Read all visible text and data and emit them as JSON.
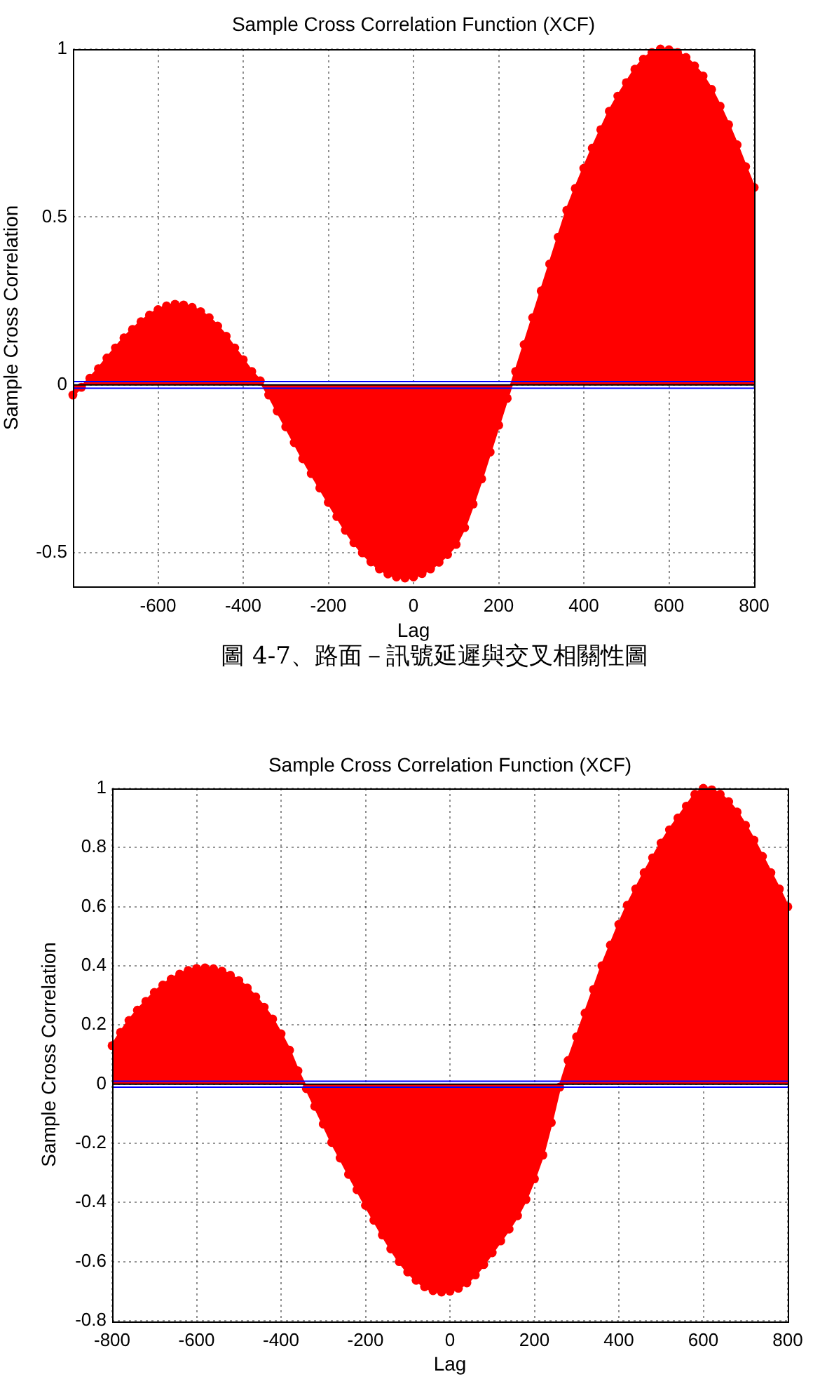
{
  "chart_data": [
    {
      "type": "area",
      "title": "Sample Cross Correlation Function (XCF)",
      "xlabel": "Lag",
      "ylabel": "Sample Cross Correlation",
      "annotations": [
        "圖 4-7、路面－訊號延遲與交叉相關性圖"
      ],
      "color": "#ff0000",
      "marker": "circle",
      "grid": true,
      "xlim": [
        -800,
        800
      ],
      "xticks": [
        -600,
        -400,
        -200,
        0,
        200,
        400,
        600,
        800
      ],
      "ylim": [
        -0.6,
        1
      ],
      "yticks": [
        -0.5,
        0,
        0.5,
        1
      ],
      "x": [
        -800,
        -780,
        -760,
        -740,
        -720,
        -700,
        -680,
        -660,
        -640,
        -620,
        -600,
        -580,
        -560,
        -540,
        -520,
        -500,
        -480,
        -460,
        -440,
        -420,
        -400,
        -380,
        -360,
        -340,
        -320,
        -300,
        -280,
        -260,
        -240,
        -220,
        -200,
        -180,
        -160,
        -140,
        -120,
        -100,
        -80,
        -60,
        -40,
        -20,
        0,
        20,
        40,
        60,
        80,
        100,
        120,
        140,
        160,
        180,
        200,
        220,
        240,
        260,
        280,
        300,
        320,
        340,
        360,
        380,
        400,
        420,
        440,
        460,
        480,
        500,
        520,
        540,
        560,
        580,
        600,
        620,
        640,
        660,
        680,
        700,
        720,
        740,
        760,
        780,
        800
      ],
      "values": [
        -0.03,
        -0.007,
        0.02,
        0.048,
        0.08,
        0.11,
        0.14,
        0.165,
        0.188,
        0.208,
        0.224,
        0.235,
        0.24,
        0.238,
        0.231,
        0.218,
        0.2,
        0.175,
        0.145,
        0.11,
        0.075,
        0.04,
        0.012,
        -0.03,
        -0.078,
        -0.125,
        -0.172,
        -0.22,
        -0.264,
        -0.307,
        -0.35,
        -0.392,
        -0.433,
        -0.47,
        -0.5,
        -0.527,
        -0.548,
        -0.563,
        -0.572,
        -0.575,
        -0.572,
        -0.562,
        -0.548,
        -0.528,
        -0.505,
        -0.475,
        -0.425,
        -0.355,
        -0.28,
        -0.2,
        -0.12,
        -0.04,
        0.04,
        0.12,
        0.2,
        0.28,
        0.36,
        0.44,
        0.52,
        0.585,
        0.645,
        0.705,
        0.76,
        0.815,
        0.86,
        0.9,
        0.94,
        0.97,
        0.99,
        1,
        0.998,
        0.99,
        0.975,
        0.95,
        0.92,
        0.88,
        0.83,
        0.775,
        0.715,
        0.65,
        0.588
      ],
      "ref_lines": [
        {
          "axis": "y",
          "value": 0.01,
          "color": "#0000ff"
        },
        {
          "axis": "y",
          "value": -0.01,
          "color": "#0000ff"
        },
        {
          "axis": "y",
          "value": 0,
          "color": "#000000"
        }
      ]
    },
    {
      "type": "area",
      "title": "Sample Cross Correlation Function (XCF)",
      "xlabel": "Lag",
      "ylabel": "Sample Cross Correlation",
      "color": "#ff0000",
      "marker": "circle",
      "grid": true,
      "xlim": [
        -800,
        800
      ],
      "xticks": [
        -800,
        -600,
        -400,
        -200,
        0,
        200,
        400,
        600,
        800
      ],
      "ylim": [
        -0.8,
        1
      ],
      "yticks": [
        -0.8,
        -0.6,
        -0.4,
        -0.2,
        0,
        0.2,
        0.4,
        0.6,
        0.8,
        1
      ],
      "x": [
        -800,
        -780,
        -760,
        -740,
        -720,
        -700,
        -680,
        -660,
        -640,
        -620,
        -600,
        -580,
        -560,
        -540,
        -520,
        -500,
        -480,
        -460,
        -440,
        -420,
        -400,
        -380,
        -360,
        -340,
        -320,
        -300,
        -280,
        -260,
        -240,
        -220,
        -200,
        -180,
        -160,
        -140,
        -120,
        -100,
        -80,
        -60,
        -40,
        -20,
        0,
        20,
        40,
        60,
        80,
        100,
        120,
        140,
        160,
        180,
        200,
        220,
        240,
        260,
        280,
        300,
        320,
        340,
        360,
        380,
        400,
        420,
        440,
        460,
        480,
        500,
        520,
        540,
        560,
        580,
        600,
        620,
        640,
        660,
        680,
        700,
        720,
        740,
        760,
        780,
        800
      ],
      "values": [
        0.13,
        0.175,
        0.215,
        0.25,
        0.28,
        0.31,
        0.335,
        0.355,
        0.372,
        0.384,
        0.391,
        0.393,
        0.39,
        0.382,
        0.368,
        0.35,
        0.325,
        0.295,
        0.26,
        0.22,
        0.17,
        0.115,
        0.045,
        -0.015,
        -0.075,
        -0.135,
        -0.197,
        -0.25,
        -0.305,
        -0.357,
        -0.41,
        -0.46,
        -0.51,
        -0.557,
        -0.6,
        -0.635,
        -0.663,
        -0.685,
        -0.698,
        -0.703,
        -0.7,
        -0.69,
        -0.672,
        -0.645,
        -0.61,
        -0.57,
        -0.53,
        -0.49,
        -0.445,
        -0.39,
        -0.32,
        -0.24,
        -0.13,
        -0.01,
        0.08,
        0.16,
        0.24,
        0.32,
        0.4,
        0.47,
        0.54,
        0.605,
        0.66,
        0.715,
        0.765,
        0.815,
        0.86,
        0.9,
        0.94,
        0.98,
        1,
        0.995,
        0.98,
        0.955,
        0.92,
        0.875,
        0.825,
        0.77,
        0.715,
        0.66,
        0.6
      ],
      "ref_lines": [
        {
          "axis": "y",
          "value": 0.01,
          "color": "#0000ff"
        },
        {
          "axis": "y",
          "value": -0.01,
          "color": "#0000ff"
        },
        {
          "axis": "y",
          "value": 0,
          "color": "#000000"
        }
      ]
    }
  ]
}
